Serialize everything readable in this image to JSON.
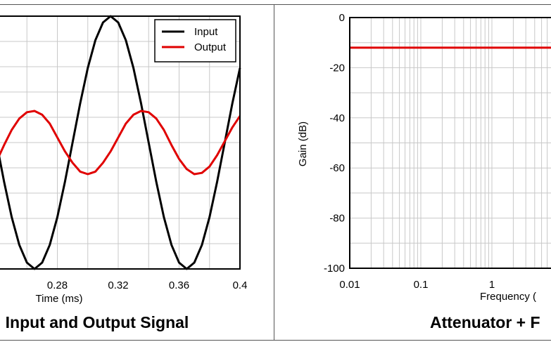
{
  "chart_data": [
    {
      "type": "line",
      "title": "Input and Output Signal",
      "xlabel": "Time (ms)",
      "ylabel": "",
      "xlim": [
        0.24,
        0.4
      ],
      "ylim": [
        -1.0,
        1.0
      ],
      "x_ticks": [
        "0.28",
        "0.32",
        "0.36",
        "0.4"
      ],
      "grid": true,
      "legend_position": "top-right",
      "series": [
        {
          "name": "Input",
          "color": "#000000",
          "x": [
            0.24,
            0.245,
            0.25,
            0.255,
            0.26,
            0.265,
            0.27,
            0.275,
            0.28,
            0.285,
            0.29,
            0.295,
            0.3,
            0.305,
            0.31,
            0.315,
            0.32,
            0.325,
            0.33,
            0.335,
            0.34,
            0.345,
            0.35,
            0.355,
            0.36,
            0.365,
            0.37,
            0.375,
            0.38,
            0.385,
            0.39,
            0.395,
            0.4
          ],
          "y": [
            0.0,
            -0.31,
            -0.59,
            -0.81,
            -0.95,
            -1.0,
            -0.95,
            -0.81,
            -0.59,
            -0.31,
            0.0,
            0.31,
            0.59,
            0.81,
            0.95,
            1.0,
            0.95,
            0.81,
            0.59,
            0.31,
            0.0,
            -0.31,
            -0.59,
            -0.81,
            -0.95,
            -1.0,
            -0.95,
            -0.81,
            -0.59,
            -0.31,
            0.0,
            0.31,
            0.59
          ]
        },
        {
          "name": "Output",
          "color": "#e00000",
          "x": [
            0.24,
            0.245,
            0.25,
            0.255,
            0.26,
            0.265,
            0.27,
            0.275,
            0.28,
            0.285,
            0.29,
            0.295,
            0.3,
            0.305,
            0.31,
            0.315,
            0.32,
            0.325,
            0.33,
            0.335,
            0.34,
            0.345,
            0.35,
            0.355,
            0.36,
            0.365,
            0.37,
            0.375,
            0.38,
            0.385,
            0.39,
            0.395,
            0.4
          ],
          "y": [
            -0.15,
            -0.02,
            0.1,
            0.19,
            0.24,
            0.25,
            0.22,
            0.15,
            0.04,
            -0.07,
            -0.16,
            -0.23,
            -0.25,
            -0.23,
            -0.16,
            -0.07,
            0.04,
            0.15,
            0.22,
            0.25,
            0.24,
            0.19,
            0.1,
            -0.02,
            -0.13,
            -0.21,
            -0.25,
            -0.24,
            -0.19,
            -0.1,
            0.01,
            0.12,
            0.21
          ]
        }
      ]
    },
    {
      "type": "line",
      "title": "Attenuator + F",
      "xlabel": "Frequency (",
      "ylabel": "Gain (dB)",
      "x_scale": "log",
      "xlim": [
        0.01,
        10
      ],
      "ylim": [
        -100,
        0
      ],
      "x_ticks": [
        "0.01",
        "0.1",
        "1"
      ],
      "y_ticks": [
        "0",
        "-20",
        "-40",
        "-60",
        "-80",
        "-100"
      ],
      "grid": true,
      "series": [
        {
          "color": "#e00000",
          "x": [
            0.01,
            10
          ],
          "y": [
            -12,
            -12
          ]
        }
      ]
    }
  ]
}
